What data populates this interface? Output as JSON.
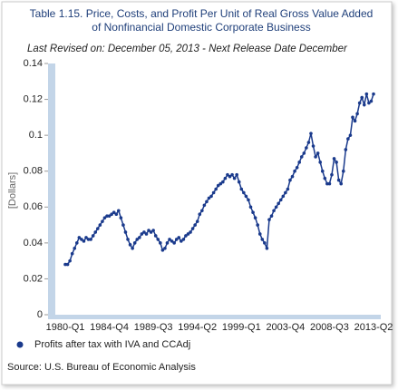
{
  "chart_data": {
    "type": "line",
    "title": "Table 1.15. Price, Costs, and Profit Per Unit of Real Gross Value Added",
    "title_line2": "of Nonfinancial Domestic Corporate Business",
    "subtitle": "Last Revised on: December 05, 2013 - Next Release Date December",
    "y_label": "[Dollars]",
    "source": "Source: U.S. Bureau of Economic Analysis",
    "categories": [
      "1980-Q1",
      null,
      null,
      null,
      null,
      null,
      null,
      null,
      null,
      null,
      null,
      null,
      null,
      null,
      null,
      null,
      null,
      null,
      null,
      "1984-Q4",
      null,
      null,
      null,
      null,
      null,
      null,
      null,
      null,
      null,
      null,
      null,
      null,
      null,
      null,
      null,
      null,
      null,
      null,
      "1989-Q3",
      null,
      null,
      null,
      null,
      null,
      null,
      null,
      null,
      null,
      null,
      null,
      null,
      null,
      null,
      null,
      null,
      null,
      null,
      "1994-Q2",
      null,
      null,
      null,
      null,
      null,
      null,
      null,
      null,
      null,
      null,
      null,
      null,
      null,
      null,
      null,
      null,
      null,
      null,
      "1999-Q1",
      null,
      null,
      null,
      null,
      null,
      null,
      null,
      null,
      null,
      null,
      null,
      null,
      null,
      null,
      null,
      null,
      null,
      null,
      "2003-Q4",
      null,
      null,
      null,
      null,
      null,
      null,
      null,
      null,
      null,
      null,
      null,
      null,
      null,
      null,
      null,
      null,
      null,
      null,
      "2008-Q3",
      null,
      null,
      null,
      null,
      null,
      null,
      null,
      null,
      null,
      null,
      null,
      null,
      null,
      null,
      null,
      null,
      null,
      null,
      "2013-Q2"
    ],
    "series": [
      {
        "name": "Profits after tax with IVA and CCAdj",
        "color": "#1a3a8c",
        "values": [
          0.028,
          0.028,
          0.03,
          0.034,
          0.037,
          0.04,
          0.043,
          0.042,
          0.041,
          0.043,
          0.042,
          0.042,
          0.044,
          0.046,
          0.048,
          0.05,
          0.052,
          0.054,
          0.055,
          0.055,
          0.056,
          0.057,
          0.056,
          0.058,
          0.054,
          0.05,
          0.046,
          0.042,
          0.039,
          0.037,
          0.04,
          0.042,
          0.043,
          0.045,
          0.046,
          0.045,
          0.047,
          0.046,
          0.047,
          0.044,
          0.042,
          0.04,
          0.036,
          0.037,
          0.04,
          0.042,
          0.041,
          0.04,
          0.042,
          0.043,
          0.041,
          0.042,
          0.044,
          0.045,
          0.046,
          0.048,
          0.05,
          0.052,
          0.056,
          0.058,
          0.061,
          0.063,
          0.065,
          0.066,
          0.068,
          0.07,
          0.072,
          0.073,
          0.074,
          0.076,
          0.078,
          0.077,
          0.078,
          0.076,
          0.078,
          0.074,
          0.07,
          0.068,
          0.066,
          0.064,
          0.06,
          0.057,
          0.054,
          0.05,
          0.045,
          0.042,
          0.04,
          0.037,
          0.053,
          0.055,
          0.058,
          0.06,
          0.062,
          0.064,
          0.066,
          0.068,
          0.07,
          0.075,
          0.077,
          0.08,
          0.082,
          0.085,
          0.088,
          0.09,
          0.093,
          0.096,
          0.101,
          0.094,
          0.088,
          0.09,
          0.085,
          0.08,
          0.076,
          0.073,
          0.073,
          0.078,
          0.087,
          0.085,
          0.075,
          0.073,
          0.08,
          0.092,
          0.098,
          0.1,
          0.11,
          0.108,
          0.112,
          0.118,
          0.121,
          0.117,
          0.123,
          0.118,
          0.119,
          0.123
        ]
      }
    ],
    "ylim": [
      0,
      0.14
    ],
    "yticks": [
      0,
      0.02,
      0.04,
      0.06,
      0.08,
      0.1,
      0.12,
      0.14
    ]
  }
}
